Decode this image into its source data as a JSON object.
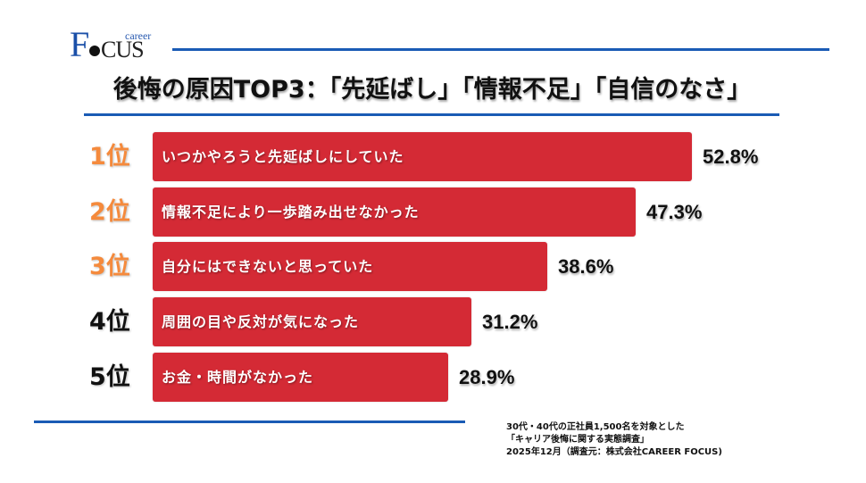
{
  "logo": {
    "f": "F",
    "cus": "CUS",
    "career": "career"
  },
  "title": "後悔の原因TOP3：「先延ばし」「情報不足」「自信のなさ」",
  "colors": {
    "accent_blue": "#1a5bb5",
    "bar_red": "#d42a35",
    "rank_orange": "#f58a3c",
    "rank_black": "#111111"
  },
  "chart_data": {
    "type": "bar",
    "orientation": "horizontal",
    "title": "後悔の原因TOP3：「先延ばし」「情報不足」「自信のなさ」",
    "categories": [
      "いつかやろうと先延ばしにしていた",
      "情報不足により一歩踏み出せなかった",
      "自分にはできないと思っていた",
      "周囲の目や反対が気になった",
      "お金・時間がなかった"
    ],
    "ranks": [
      "1位",
      "2位",
      "3位",
      "4位",
      "5位"
    ],
    "values": [
      52.8,
      47.3,
      38.6,
      31.2,
      28.9
    ],
    "value_labels": [
      "52.8%",
      "47.3%",
      "38.6%",
      "31.2%",
      "28.9%"
    ],
    "unit": "%",
    "xlabel": "",
    "ylabel": "",
    "grid": false,
    "legend": null
  },
  "footer": {
    "line1": "30代・40代の正社員1,500名を対象とした",
    "line2": "「キャリア後悔に関する実態調査」",
    "line3": "2025年12月（調査元：株式会社CAREER FOCUS)"
  }
}
